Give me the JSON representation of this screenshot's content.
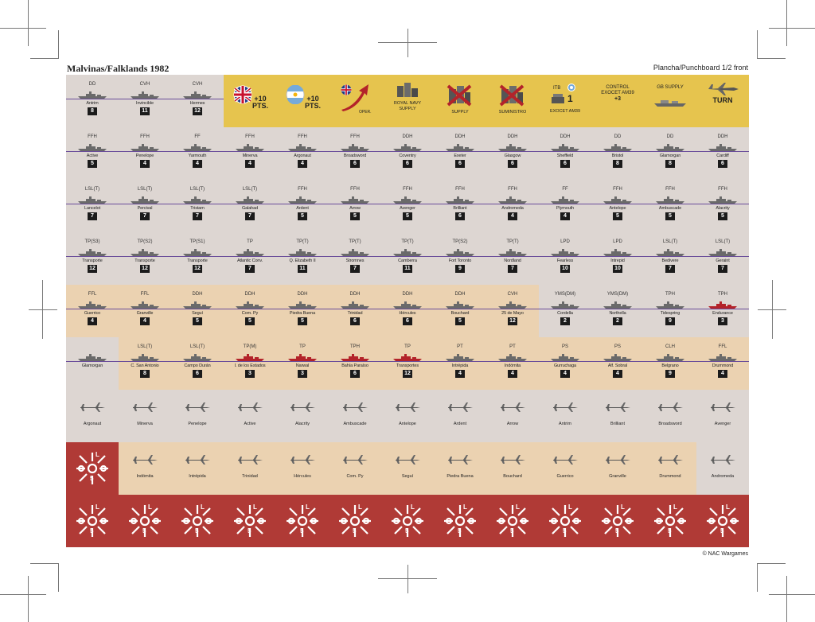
{
  "header": {
    "title": "Malvinas/Falklands 1982",
    "subtitle": "Plancha/Punchboard 1/2 front"
  },
  "footer": {
    "credit": "© NAC Wargames"
  },
  "colors": {
    "yellow": "#e6c44e",
    "grey": "#ddd6d2",
    "tan": "#ebd2b1",
    "red": "#b03a36",
    "ship_line": "#6a4d9a"
  },
  "row1_ships": [
    {
      "type": "DD",
      "name": "Antrim",
      "num": "8"
    },
    {
      "type": "CVH",
      "name": "Invincible",
      "num": "11"
    },
    {
      "type": "CVH",
      "name": "Hermes",
      "num": "12"
    }
  ],
  "row1_markers": {
    "uk_points": "+10 PTS.",
    "ar_points": "+10 PTS.",
    "oper": "OPER.",
    "rn_supply": "ROYAL NAVY SUPPLY",
    "supply": "SUPPLY",
    "suministro": "SUMINISTRO",
    "itb_top": "ITB",
    "itb_num": "1",
    "itb_bottom": "EXOCET AM39",
    "control_top": "CONTROL EXOCET AM39",
    "control_val": "+3",
    "gb_supply": "GB SUPPLY",
    "turn": "TURN"
  },
  "rows": [
    [
      {
        "type": "FFH",
        "name": "Active",
        "num": "5"
      },
      {
        "type": "FFH",
        "name": "Penelope",
        "num": "4"
      },
      {
        "type": "FF",
        "name": "Yarmouth",
        "num": "4"
      },
      {
        "type": "FFH",
        "name": "Minerva",
        "num": "4"
      },
      {
        "type": "FFH",
        "name": "Argonaut",
        "num": "4"
      },
      {
        "type": "FFH",
        "name": "Broadsword",
        "num": "6"
      },
      {
        "type": "DDH",
        "name": "Coventry",
        "num": "6"
      },
      {
        "type": "DDH",
        "name": "Exeter",
        "num": "6"
      },
      {
        "type": "DDH",
        "name": "Glasgow",
        "num": "6"
      },
      {
        "type": "DDH",
        "name": "Sheffield",
        "num": "6"
      },
      {
        "type": "DD",
        "name": "Bristol",
        "num": "8"
      },
      {
        "type": "DD",
        "name": "Glamorgan",
        "num": "8"
      },
      {
        "type": "DDH",
        "name": "Cardiff",
        "num": "6"
      }
    ],
    [
      {
        "type": "LSL(T)",
        "name": "Lancelot",
        "num": "7"
      },
      {
        "type": "LSL(T)",
        "name": "Percival",
        "num": "7"
      },
      {
        "type": "LSL(T)",
        "name": "Tristam",
        "num": "7"
      },
      {
        "type": "LSL(T)",
        "name": "Galahad",
        "num": "7"
      },
      {
        "type": "FFH",
        "name": "Ardent",
        "num": "5"
      },
      {
        "type": "FFH",
        "name": "Arrow",
        "num": "5"
      },
      {
        "type": "FFH",
        "name": "Avenger",
        "num": "5"
      },
      {
        "type": "FFH",
        "name": "Brilliant",
        "num": "6"
      },
      {
        "type": "FFH",
        "name": "Andromeda",
        "num": "4"
      },
      {
        "type": "FF",
        "name": "Plymouth",
        "num": "4"
      },
      {
        "type": "FFH",
        "name": "Antelope",
        "num": "5"
      },
      {
        "type": "FFH",
        "name": "Ambuscade",
        "num": "5"
      },
      {
        "type": "FFH",
        "name": "Alacrity",
        "num": "5"
      }
    ],
    [
      {
        "type": "TP(S3)",
        "name": "Transporte",
        "num": "12"
      },
      {
        "type": "TP(S2)",
        "name": "Transporte",
        "num": "12"
      },
      {
        "type": "TP(S1)",
        "name": "Transporte",
        "num": "12"
      },
      {
        "type": "TP",
        "name": "Atlantic Conv.",
        "num": "7"
      },
      {
        "type": "TP(T)",
        "name": "Q. Elizabeth II",
        "num": "11"
      },
      {
        "type": "TP(T)",
        "name": "Stromnes",
        "num": "7"
      },
      {
        "type": "TP(T)",
        "name": "Camberra",
        "num": "11"
      },
      {
        "type": "TP(S2)",
        "name": "Fort Toronto",
        "num": "9"
      },
      {
        "type": "TP(T)",
        "name": "Nordland",
        "num": "7"
      },
      {
        "type": "LPD",
        "name": "Fearless",
        "num": "10"
      },
      {
        "type": "LPD",
        "name": "Intrepid",
        "num": "10"
      },
      {
        "type": "LSL(T)",
        "name": "Bedivere",
        "num": "7"
      },
      {
        "type": "LSL(T)",
        "name": "Geraint",
        "num": "7"
      }
    ],
    [
      {
        "type": "FFL",
        "name": "Guerrico",
        "num": "4"
      },
      {
        "type": "FFL",
        "name": "Granville",
        "num": "4"
      },
      {
        "type": "DDH",
        "name": "Seguí",
        "num": "5"
      },
      {
        "type": "DDH",
        "name": "Com. Py",
        "num": "5"
      },
      {
        "type": "DDH",
        "name": "Piedra Buena",
        "num": "5"
      },
      {
        "type": "DDH",
        "name": "Trinidad",
        "num": "6"
      },
      {
        "type": "DDH",
        "name": "Hércules",
        "num": "6"
      },
      {
        "type": "DDH",
        "name": "Bouchard",
        "num": "5"
      },
      {
        "type": "CVH",
        "name": "25 de Mayo",
        "num": "12"
      },
      {
        "type": "YMS(DM)",
        "name": "Cordella",
        "num": "2"
      },
      {
        "type": "YMS(DM)",
        "name": "Northella",
        "num": "2"
      },
      {
        "type": "TPH",
        "name": "Tidespring",
        "num": "9"
      },
      {
        "type": "TPH",
        "name": "Endurance",
        "num": "3"
      }
    ],
    [
      {
        "type": "",
        "name": "Glamorgan",
        "num": ""
      },
      {
        "type": "LSL(T)",
        "name": "C. San Antonio",
        "num": "8"
      },
      {
        "type": "LSL(T)",
        "name": "Campo Durán",
        "num": "6"
      },
      {
        "type": "TP(M)",
        "name": "I. de los Estados",
        "num": "3"
      },
      {
        "type": "TP",
        "name": "Narwal",
        "num": "3"
      },
      {
        "type": "TPH",
        "name": "Bahía Paraíso",
        "num": "6"
      },
      {
        "type": "TP",
        "name": "Transportes",
        "num": "12"
      },
      {
        "type": "PT",
        "name": "Intrépida",
        "num": "4"
      },
      {
        "type": "PT",
        "name": "Indómita",
        "num": "4"
      },
      {
        "type": "PS",
        "name": "Gurruchaga",
        "num": "4"
      },
      {
        "type": "PS",
        "name": "Alf. Sobral",
        "num": "4"
      },
      {
        "type": "CLH",
        "name": "Belgrano",
        "num": "9"
      },
      {
        "type": "FFL",
        "name": "Drummond",
        "num": "4"
      }
    ]
  ],
  "missile_row1": [
    "Argonaut",
    "Minerva",
    "Penelope",
    "Active",
    "Alacrity",
    "Ambuscade",
    "Antelope",
    "Ardent",
    "Arrow",
    "Antrim",
    "Brilliant",
    "Broadsword",
    "Avenger"
  ],
  "missile_row2": [
    "Indómita",
    "Intrépida",
    "Trinidad",
    "Hércules",
    "Com. Py",
    "Seguí",
    "Piedra Buena",
    "Bouchard",
    "Guerrico",
    "Granville",
    "Drummond",
    "Andromeda"
  ],
  "emblem": {
    "top": "L",
    "side": "L",
    "bottom": "5"
  }
}
